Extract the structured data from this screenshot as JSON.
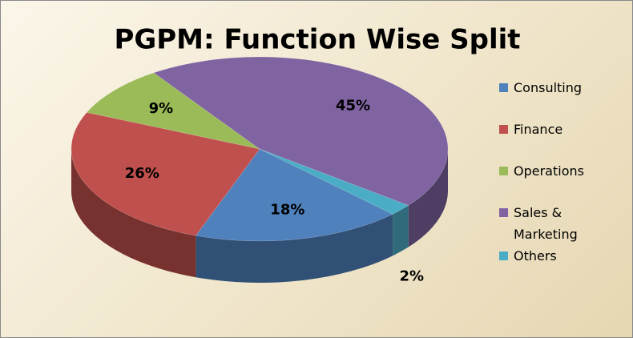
{
  "chart_data": {
    "type": "pie",
    "title": "PGPM: Function Wise Split",
    "categories": [
      "Consulting",
      "Finance",
      "Operations",
      "Sales & Marketing",
      "Others"
    ],
    "values": [
      18,
      26,
      9,
      45,
      2
    ],
    "value_labels": [
      "18%",
      "26%",
      "9%",
      "45%",
      "2%"
    ],
    "colors": [
      "#4f81bd",
      "#c0504d",
      "#9bbb59",
      "#8064a2",
      "#4bacc6"
    ],
    "legend": "right"
  }
}
